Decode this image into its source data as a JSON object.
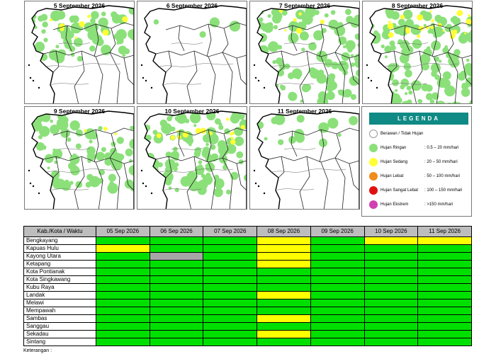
{
  "maps": [
    {
      "title": "5 September 2026"
    },
    {
      "title": "6 September 2026"
    },
    {
      "title": "7 September 2026"
    },
    {
      "title": "8 September 2026"
    },
    {
      "title": "9 September 2026"
    },
    {
      "title": "10 September 2026"
    },
    {
      "title": "11 September 2026"
    }
  ],
  "legend": {
    "title": "LEGENDA",
    "items": [
      {
        "label": "Berawan / Tidak Hujan",
        "range": "",
        "color": "#ffffff"
      },
      {
        "label": "Hujan Ringan",
        "range": ": 0.5 – 20 mm/hari",
        "color": "#8be07a"
      },
      {
        "label": "Hujan Sedang",
        "range": ": 20 – 50 mm/hari",
        "color": "#ffff33"
      },
      {
        "label": "Hujan Lebat",
        "range": ": 50 – 100 mm/hari",
        "color": "#f08c1c"
      },
      {
        "label": "Hujan Sangat Lebat",
        "range": ": 100 – 150 mm/hari",
        "color": "#e01010"
      },
      {
        "label": "Hujan Ekstrem",
        "range": ": >150 mm/hari",
        "color": "#d040b0"
      }
    ]
  },
  "table": {
    "header_label": "Kab./Kota / Waktu",
    "dates": [
      "05 Sep 2026",
      "06 Sep 2026",
      "07 Sep 2026",
      "08 Sep 2026",
      "09 Sep 2026",
      "10 Sep 2026",
      "11 Sep 2026"
    ],
    "colors": {
      "green": "#00e000",
      "yellow": "#ffff00",
      "gray": "#a6a6a6"
    },
    "rows": [
      {
        "region": "Bengkayang",
        "cells": [
          "green",
          "green",
          "green",
          "yellow",
          "green",
          "yellow",
          "yellow"
        ]
      },
      {
        "region": "Kapuas Hulu",
        "cells": [
          "yellow",
          "green",
          "green",
          "yellow",
          "green",
          "green",
          "green"
        ]
      },
      {
        "region": "Kayong Utara",
        "cells": [
          "green",
          "gray",
          "green",
          "yellow",
          "green",
          "green",
          "green"
        ]
      },
      {
        "region": "Ketapang",
        "cells": [
          "green",
          "green",
          "green",
          "yellow",
          "green",
          "green",
          "green"
        ]
      },
      {
        "region": "Kota Pontianak",
        "cells": [
          "green",
          "green",
          "green",
          "green",
          "green",
          "green",
          "green"
        ]
      },
      {
        "region": "Kota Singkawang",
        "cells": [
          "green",
          "green",
          "green",
          "green",
          "green",
          "green",
          "green"
        ]
      },
      {
        "region": "Kubu Raya",
        "cells": [
          "green",
          "green",
          "green",
          "green",
          "green",
          "green",
          "green"
        ]
      },
      {
        "region": "Landak",
        "cells": [
          "green",
          "green",
          "green",
          "yellow",
          "green",
          "green",
          "green"
        ]
      },
      {
        "region": "Melawi",
        "cells": [
          "green",
          "green",
          "green",
          "green",
          "green",
          "green",
          "green"
        ]
      },
      {
        "region": "Mempawah",
        "cells": [
          "green",
          "green",
          "green",
          "green",
          "green",
          "green",
          "green"
        ]
      },
      {
        "region": "Sambas",
        "cells": [
          "green",
          "green",
          "green",
          "yellow",
          "green",
          "green",
          "green"
        ]
      },
      {
        "region": "Sanggau",
        "cells": [
          "green",
          "green",
          "green",
          "green",
          "green",
          "green",
          "green"
        ]
      },
      {
        "region": "Sekadau",
        "cells": [
          "green",
          "green",
          "green",
          "yellow",
          "green",
          "green",
          "green"
        ]
      },
      {
        "region": "Sintang",
        "cells": [
          "green",
          "green",
          "green",
          "green",
          "green",
          "green",
          "green"
        ]
      }
    ]
  },
  "footer": {
    "note": "Keterangan :"
  }
}
